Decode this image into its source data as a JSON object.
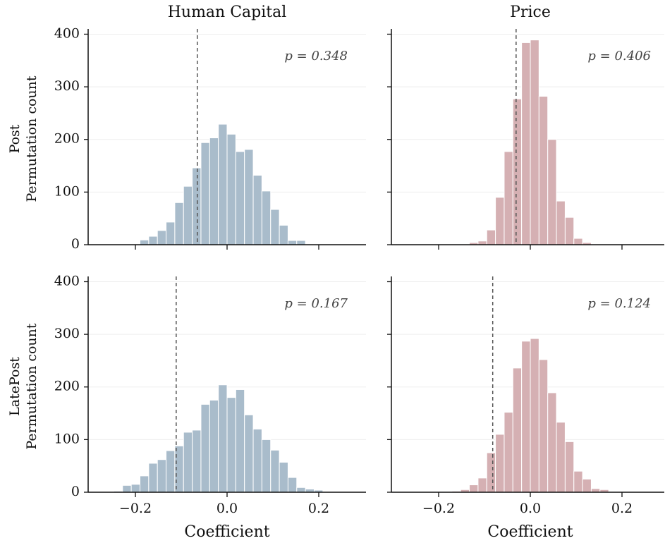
{
  "chart_data": [
    {
      "type": "histogram",
      "title": "Human Capital",
      "row_label": "Post",
      "ylabel": "Permutation count",
      "bins": [
        -0.19,
        -0.171,
        -0.152,
        -0.133,
        -0.114,
        -0.095,
        -0.076,
        -0.057,
        -0.038,
        -0.019,
        0,
        0.019,
        0.038,
        0.057,
        0.076,
        0.095,
        0.114,
        0.133,
        0.152,
        0.171
      ],
      "values": [
        9,
        16,
        27,
        43,
        80,
        111,
        146,
        194,
        203,
        229,
        210,
        177,
        181,
        132,
        102,
        67,
        37,
        8,
        8
      ],
      "color": "#a9bccb",
      "observed": -0.065,
      "annotation": "p = 0.348",
      "xlim": [
        -0.3,
        0.3
      ],
      "xticks": [
        -0.2,
        0,
        0.2
      ],
      "ylim": [
        0,
        410
      ],
      "yticks": [
        0,
        100,
        200,
        300,
        400
      ],
      "grid": true
    },
    {
      "type": "histogram",
      "title": "Price",
      "bins": [
        -0.133,
        -0.114,
        -0.095,
        -0.076,
        -0.057,
        -0.038,
        -0.019,
        0,
        0.019,
        0.038,
        0.057,
        0.076,
        0.095,
        0.114,
        0.133
      ],
      "values": [
        4,
        7,
        28,
        90,
        177,
        277,
        384,
        389,
        282,
        200,
        83,
        52,
        12,
        4
      ],
      "color": "#d5b0b3",
      "observed": -0.031,
      "annotation": "p = 0.406",
      "xlim": [
        -0.3,
        0.3
      ],
      "xticks": [
        -0.2,
        0,
        0.2
      ],
      "ylim": [
        0,
        410
      ],
      "yticks": [
        0,
        100,
        200,
        300,
        400
      ],
      "grid": true
    },
    {
      "type": "histogram",
      "row_label": "LatePost",
      "ylabel": "Permutation count",
      "xlabel": "Coefficient",
      "bins": [
        -0.247,
        -0.228,
        -0.209,
        -0.19,
        -0.171,
        -0.152,
        -0.133,
        -0.114,
        -0.095,
        -0.076,
        -0.057,
        -0.038,
        -0.019,
        0,
        0.019,
        0.038,
        0.057,
        0.076,
        0.095,
        0.114,
        0.133,
        0.152,
        0.171,
        0.19,
        0.209
      ],
      "values": [
        2,
        13,
        15,
        31,
        55,
        62,
        79,
        88,
        114,
        118,
        167,
        175,
        204,
        180,
        195,
        147,
        120,
        100,
        80,
        57,
        28,
        9,
        6,
        4
      ],
      "color": "#a9bccb",
      "observed": -0.111,
      "annotation": "p = 0.167",
      "xlim": [
        -0.3,
        0.3
      ],
      "xticks": [
        {
          "value": -0.2,
          "label": "−0.2"
        },
        {
          "value": 0,
          "label": "0.0"
        },
        {
          "value": 0.2,
          "label": "0.2"
        }
      ],
      "ylim": [
        0,
        410
      ],
      "yticks": [
        0,
        100,
        200,
        300,
        400
      ],
      "grid": true
    },
    {
      "type": "histogram",
      "xlabel": "Coefficient",
      "bins": [
        -0.171,
        -0.152,
        -0.133,
        -0.114,
        -0.095,
        -0.076,
        -0.057,
        -0.038,
        -0.019,
        0,
        0.019,
        0.038,
        0.057,
        0.076,
        0.095,
        0.114,
        0.133,
        0.152,
        0.171,
        0.19
      ],
      "values": [
        2,
        5,
        14,
        27,
        75,
        110,
        152,
        236,
        287,
        292,
        252,
        189,
        133,
        96,
        40,
        25,
        7,
        5,
        1
      ],
      "color": "#d5b0b3",
      "observed": -0.082,
      "annotation": "p = 0.124",
      "xlim": [
        -0.3,
        0.3
      ],
      "xticks": [
        {
          "value": -0.2,
          "label": "−0.2"
        },
        {
          "value": 0,
          "label": "0.0"
        },
        {
          "value": 0.2,
          "label": "0.2"
        }
      ],
      "ylim": [
        0,
        410
      ],
      "yticks": [
        0,
        100,
        200,
        300,
        400
      ],
      "grid": true
    }
  ]
}
